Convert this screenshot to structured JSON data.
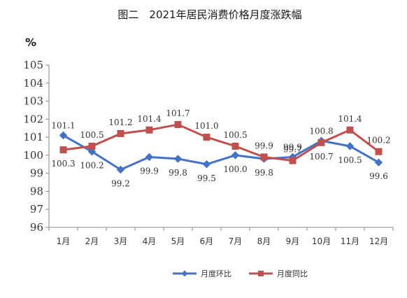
{
  "chart_data": {
    "type": "line",
    "title": "图二　2021年居民消费价格月度涨跌幅",
    "unit_label": "%",
    "categories": [
      "1月",
      "2月",
      "3月",
      "4月",
      "5月",
      "6月",
      "7月",
      "8月",
      "9月",
      "10月",
      "11月",
      "12月"
    ],
    "yticks": [
      "96",
      "97",
      "98",
      "99",
      "100",
      "101",
      "102",
      "103",
      "104",
      "105"
    ],
    "ylim": [
      96,
      105
    ],
    "grid": false,
    "legend_position": "bottom",
    "series": [
      {
        "name": "月度环比",
        "color": "#4472C4",
        "marker": "diamond",
        "values": [
          101.1,
          100.2,
          99.2,
          99.9,
          99.8,
          99.5,
          100.0,
          99.8,
          99.9,
          100.8,
          100.5,
          99.6
        ],
        "labels": [
          "101.1",
          "100.2",
          "99.2",
          "99.9",
          "99.8",
          "99.5",
          "100.0",
          "99.8",
          "99.9",
          "100.8",
          "100.5",
          "99.6"
        ]
      },
      {
        "name": "月度同比",
        "color": "#C0504D",
        "marker": "square",
        "values": [
          100.3,
          100.5,
          101.2,
          101.4,
          101.7,
          101.0,
          100.5,
          99.9,
          99.7,
          100.7,
          101.4,
          100.2
        ],
        "labels": [
          "100.3",
          "100.5",
          "101.2",
          "101.4",
          "101.7",
          "101.0",
          "100.5",
          "99.9",
          "99.7",
          "100.7",
          "101.4",
          "100.2"
        ]
      }
    ]
  }
}
